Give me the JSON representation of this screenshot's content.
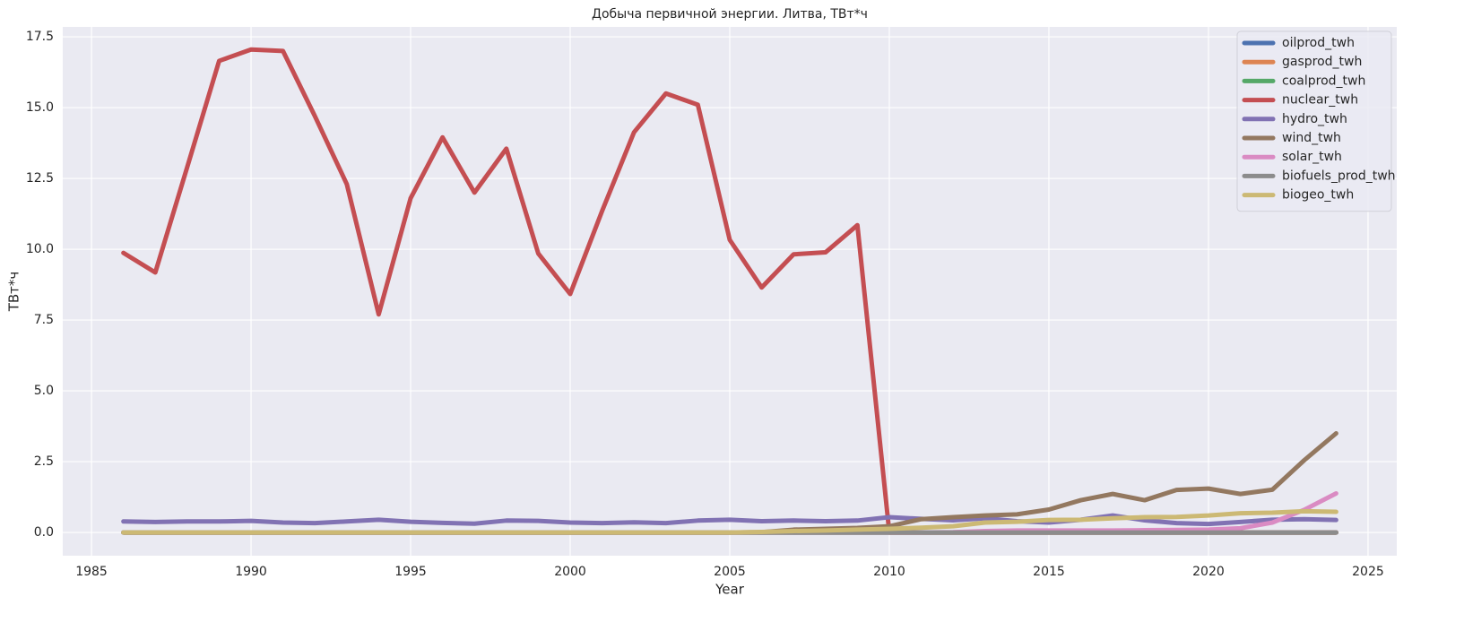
{
  "chart_data": {
    "type": "line",
    "title": "Добыча первичной энергии. Литва, ТВт*ч",
    "x_label": "Year",
    "y_label": "ТВт*ч",
    "x": [
      1986,
      1987,
      1988,
      1989,
      1990,
      1991,
      1992,
      1993,
      1994,
      1995,
      1996,
      1997,
      1998,
      1999,
      2000,
      2001,
      2002,
      2003,
      2004,
      2005,
      2006,
      2007,
      2008,
      2009,
      2010,
      2011,
      2012,
      2013,
      2014,
      2015,
      2016,
      2017,
      2018,
      2019,
      2020,
      2021,
      2022,
      2023,
      2024
    ],
    "xlim": [
      1984.1,
      2025.9
    ],
    "xticks": [
      1985,
      1990,
      1995,
      2000,
      2005,
      2010,
      2015,
      2020,
      2025
    ],
    "ylim": [
      -0.82,
      17.85
    ],
    "yticks": [
      {
        "value": 0,
        "label": "0.0"
      },
      2.5,
      {
        "value": 5,
        "label": "5.0"
      },
      7.5,
      {
        "value": 10,
        "label": "10.0"
      },
      12.5,
      {
        "value": 15,
        "label": "15.0"
      },
      17.5
    ],
    "grid": true,
    "legend": "upper right",
    "series": [
      {
        "name": "oilprod_twh",
        "color": "#4c72b0",
        "values": [
          0,
          0,
          0,
          0,
          0,
          0,
          0,
          0,
          0,
          0,
          0,
          0,
          0,
          0,
          0,
          0,
          0,
          0,
          0,
          0,
          0,
          0,
          0,
          0,
          0,
          0,
          0,
          0,
          0,
          0,
          0,
          0,
          0,
          0,
          0,
          0,
          0,
          0,
          0
        ]
      },
      {
        "name": "gasprod_twh",
        "color": "#dd8452",
        "values": [
          0,
          0,
          0,
          0,
          0,
          0,
          0,
          0,
          0,
          0,
          0,
          0,
          0,
          0,
          0,
          0,
          0,
          0,
          0,
          0,
          0,
          0,
          0,
          0,
          0,
          0,
          0,
          0,
          0,
          0,
          0,
          0,
          0,
          0,
          0,
          0,
          0,
          0,
          0
        ]
      },
      {
        "name": "coalprod_twh",
        "color": "#55a868",
        "values": [
          0,
          0,
          0,
          0,
          0,
          0,
          0,
          0,
          0,
          0,
          0,
          0,
          0,
          0,
          0,
          0,
          0,
          0,
          0,
          0,
          0,
          0,
          0,
          0,
          0,
          0,
          0,
          0,
          0,
          0,
          0,
          0,
          0,
          0,
          0,
          0,
          0,
          0,
          0
        ]
      },
      {
        "name": "nuclear_twh",
        "color": "#c44e52",
        "values": [
          9.87,
          9.18,
          12.9,
          16.65,
          17.05,
          17.0,
          14.7,
          12.3,
          7.7,
          11.8,
          13.95,
          12.0,
          13.55,
          9.85,
          8.42,
          11.35,
          14.13,
          15.5,
          15.1,
          10.33,
          8.65,
          9.82,
          9.89,
          10.85,
          0,
          0,
          0,
          0,
          0,
          0,
          0,
          0,
          0,
          0,
          0,
          0,
          0,
          0,
          0
        ]
      },
      {
        "name": "hydro_twh",
        "color": "#8172b3",
        "values": [
          0.39,
          0.37,
          0.39,
          0.39,
          0.41,
          0.35,
          0.33,
          0.39,
          0.45,
          0.38,
          0.34,
          0.31,
          0.42,
          0.41,
          0.35,
          0.33,
          0.36,
          0.33,
          0.42,
          0.45,
          0.4,
          0.42,
          0.4,
          0.42,
          0.54,
          0.48,
          0.43,
          0.5,
          0.4,
          0.35,
          0.45,
          0.6,
          0.43,
          0.33,
          0.3,
          0.37,
          0.45,
          0.47,
          0.44
        ]
      },
      {
        "name": "wind_twh",
        "color": "#937860",
        "values": [
          0,
          0,
          0,
          0,
          0,
          0,
          0,
          0,
          0,
          0,
          0,
          0,
          0,
          0,
          0,
          0,
          0,
          0,
          0,
          0,
          0.01,
          0.1,
          0.13,
          0.16,
          0.22,
          0.47,
          0.54,
          0.6,
          0.64,
          0.81,
          1.14,
          1.36,
          1.14,
          1.5,
          1.55,
          1.36,
          1.51,
          2.55,
          3.5
        ]
      },
      {
        "name": "solar_twh",
        "color": "#da8bc3",
        "values": [
          0,
          0,
          0,
          0,
          0,
          0,
          0,
          0,
          0,
          0,
          0,
          0,
          0,
          0,
          0,
          0,
          0,
          0,
          0,
          0,
          0,
          0,
          0,
          0,
          0,
          0,
          0.01,
          0.05,
          0.07,
          0.07,
          0.07,
          0.07,
          0.08,
          0.09,
          0.1,
          0.15,
          0.35,
          0.8,
          1.38
        ]
      },
      {
        "name": "biofuels_prod_twh",
        "color": "#8c8c8c",
        "values": [
          0,
          0,
          0,
          0,
          0,
          0,
          0,
          0,
          0,
          0,
          0,
          0,
          0,
          0,
          0,
          0,
          0,
          0,
          0,
          0,
          0,
          0,
          0,
          0,
          0,
          0,
          0,
          0,
          0,
          0,
          0,
          0,
          0,
          0,
          0,
          0,
          0,
          0,
          0
        ]
      },
      {
        "name": "biogeo_twh",
        "color": "#ccb974",
        "values": [
          0,
          0,
          0,
          0,
          0,
          0,
          0,
          0,
          0,
          0,
          0,
          0,
          0,
          0,
          0,
          0,
          0,
          0,
          0,
          0,
          0.02,
          0.05,
          0.07,
          0.1,
          0.13,
          0.17,
          0.22,
          0.35,
          0.38,
          0.44,
          0.45,
          0.5,
          0.54,
          0.55,
          0.6,
          0.68,
          0.7,
          0.75,
          0.73
        ]
      }
    ]
  }
}
